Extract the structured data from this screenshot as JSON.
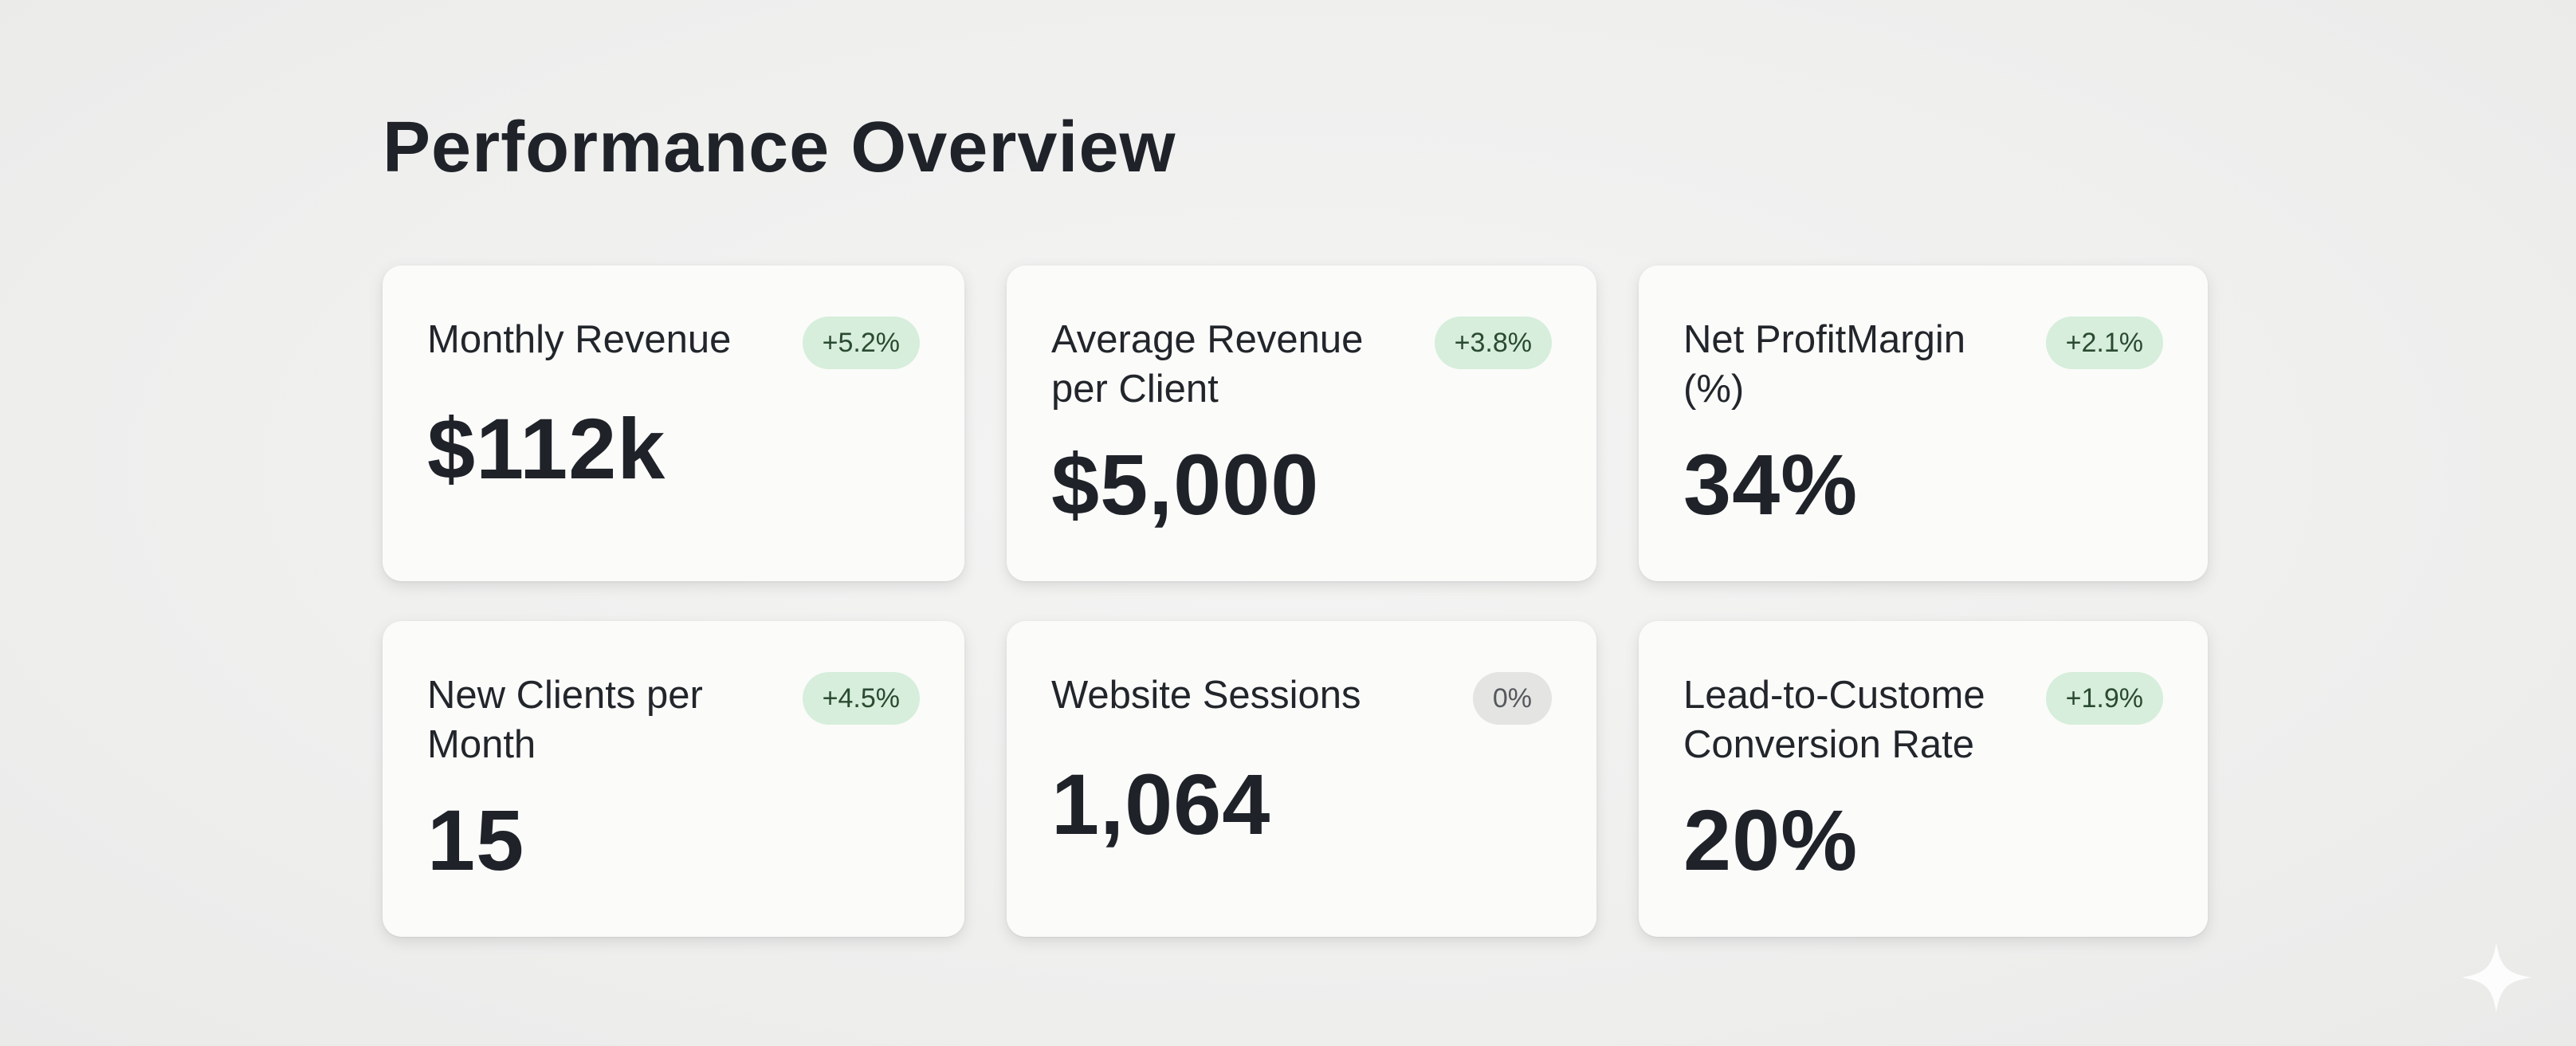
{
  "page": {
    "title": "Performance Overview"
  },
  "colors": {
    "background": "#efefee",
    "card": "#fbfbfa",
    "positive_badge": "#d6eedb",
    "neutral_badge": "#e4e4e3",
    "text": "#1f2329"
  },
  "metrics": [
    {
      "label": "Monthly Revenue",
      "value": "$112k",
      "change": "+5.2%",
      "trend": "positive"
    },
    {
      "label": "Average Revenue per Client",
      "value": "$5,000",
      "change": "+3.8%",
      "trend": "positive"
    },
    {
      "label": "Net ProfitMargin (%)",
      "value": "34%",
      "change": "+2.1%",
      "trend": "positive"
    },
    {
      "label": "New Clients per Month",
      "value": "15",
      "change": "+4.5%",
      "trend": "positive"
    },
    {
      "label": "Website Sessions",
      "value": "1,064",
      "change": "0%",
      "trend": "neutral"
    },
    {
      "label": "Lead-to-Custome Conversion Rate",
      "value": "20%",
      "change": "+1.9%",
      "trend": "positive"
    }
  ],
  "icons": {
    "corner": "sparkle-icon"
  }
}
